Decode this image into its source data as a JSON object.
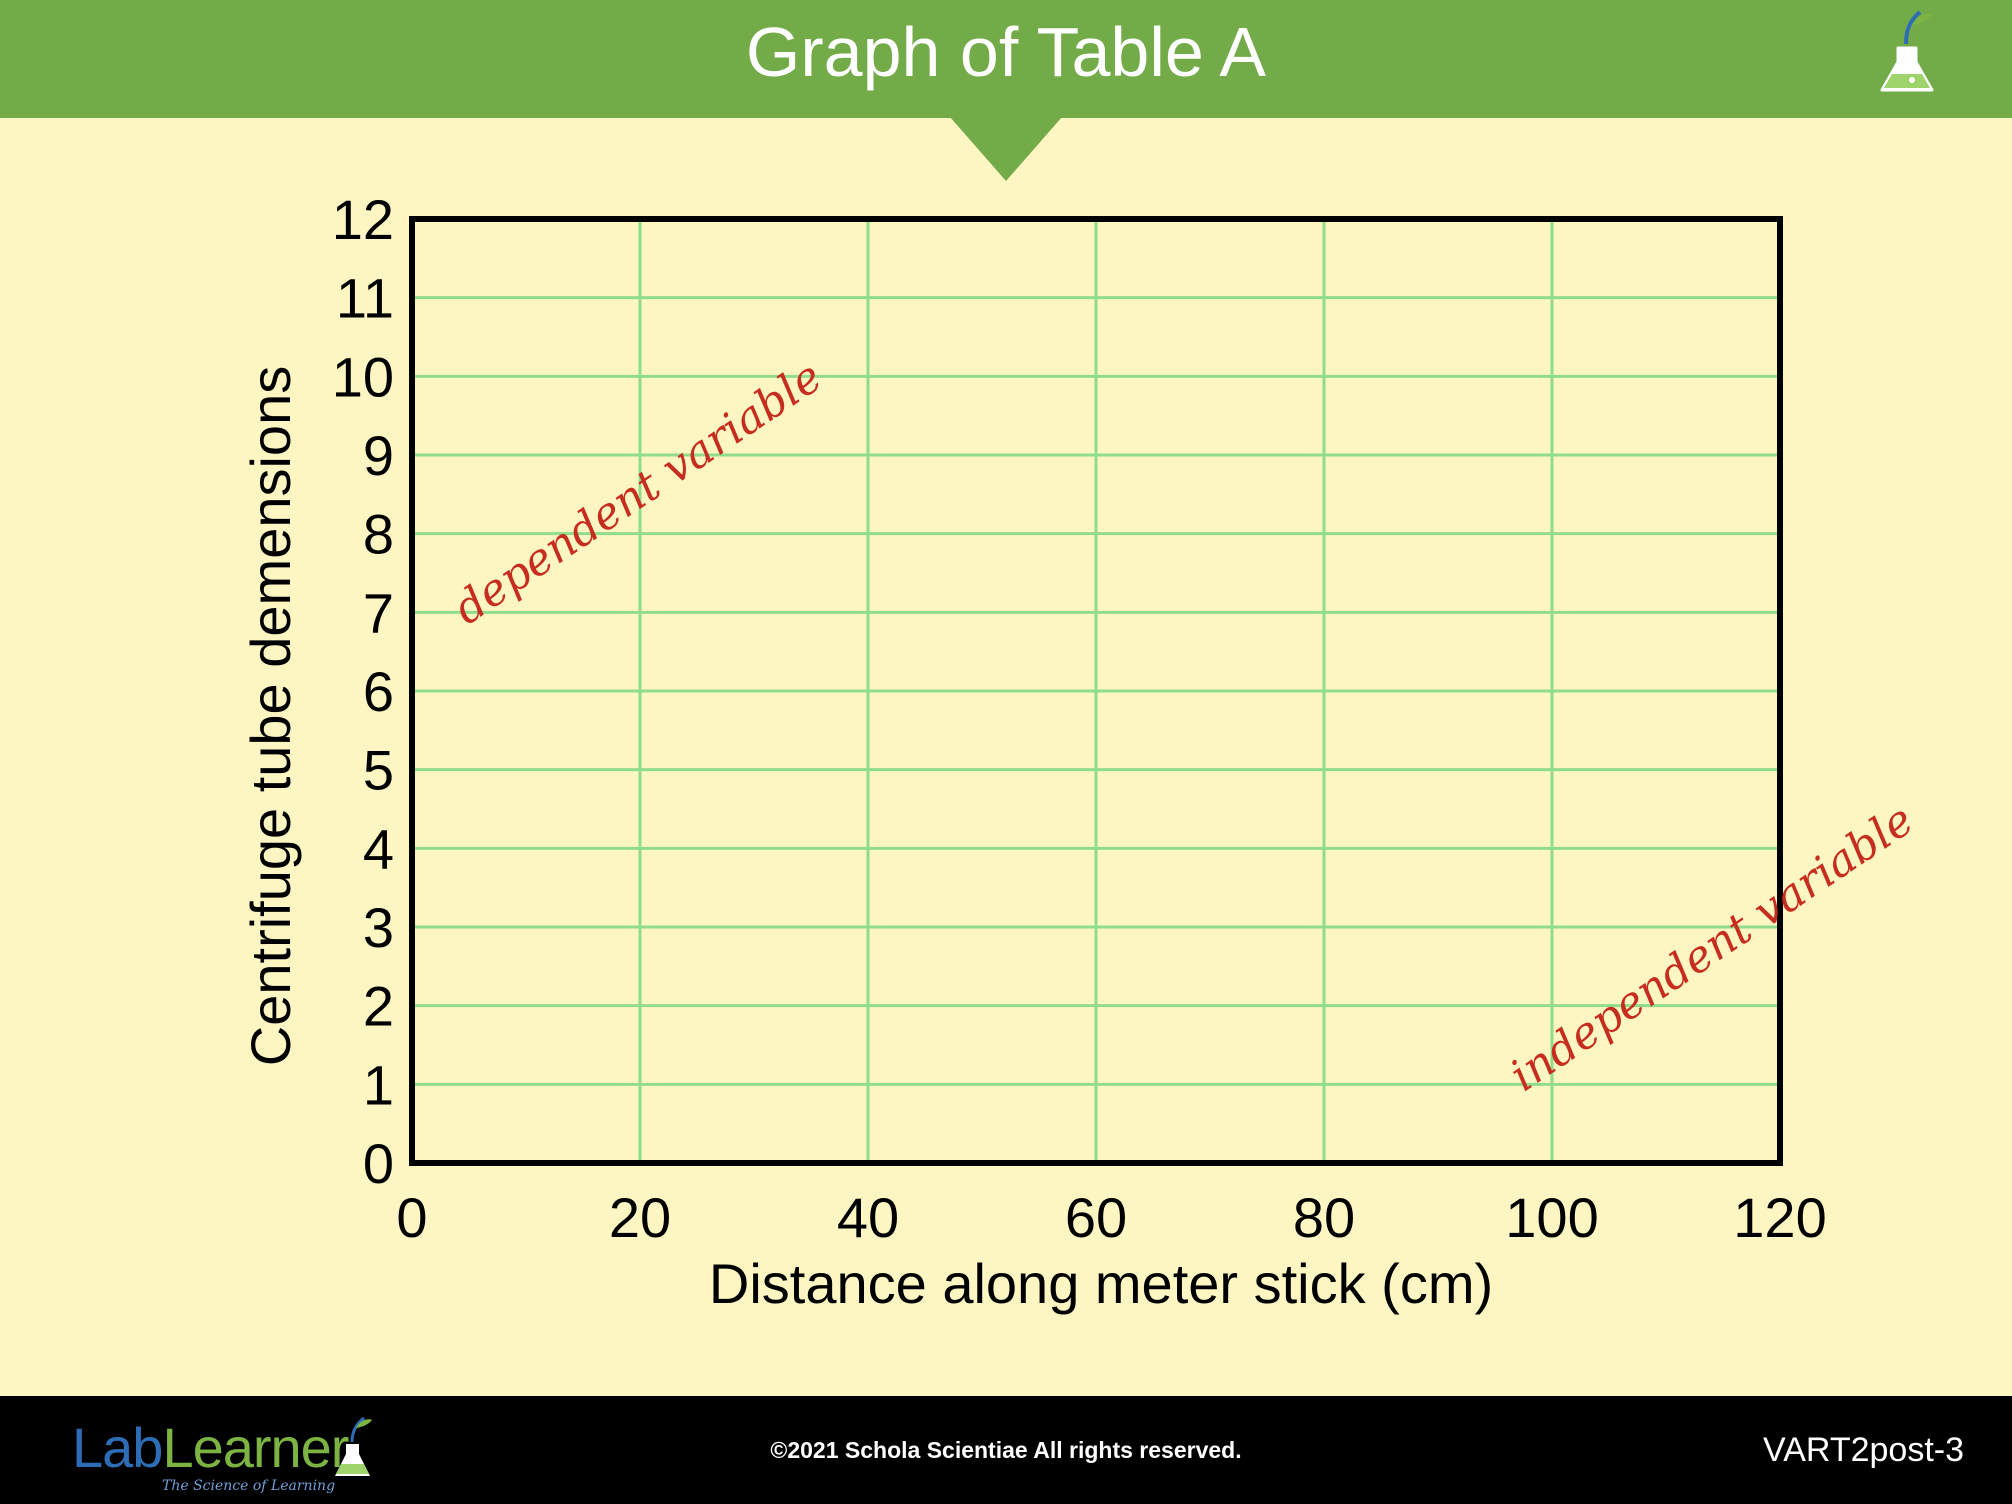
{
  "header": {
    "title": "Graph of Table A",
    "color": "#72ab48"
  },
  "icons": {
    "header": "flask-icon",
    "footer": "flask-logo-icon"
  },
  "chart_data": {
    "type": "scatter",
    "title": "Graph of Table A",
    "xlabel": "Distance along meter stick (cm)",
    "ylabel": "Centrifuge tube demensions",
    "xlim": [
      0,
      120
    ],
    "ylim": [
      0,
      12
    ],
    "x_ticks": [
      0,
      20,
      40,
      60,
      80,
      100,
      120
    ],
    "y_ticks": [
      0,
      1,
      2,
      3,
      4,
      5,
      6,
      7,
      8,
      9,
      10,
      11,
      12
    ],
    "series": [],
    "grid": true,
    "grid_color": "#8fdc8a",
    "annotations": [
      {
        "text": "dependent variable",
        "color": "#c62d1f"
      },
      {
        "text": "independent variable",
        "color": "#c62d1f"
      }
    ]
  },
  "footer": {
    "logo_lab": "Lab",
    "logo_learner": "Learner",
    "logo_tagline": "The Science of Learning",
    "copyright": "©2021 Schola Scientiae   All rights reserved.",
    "slide_code": "VART2post-3"
  }
}
